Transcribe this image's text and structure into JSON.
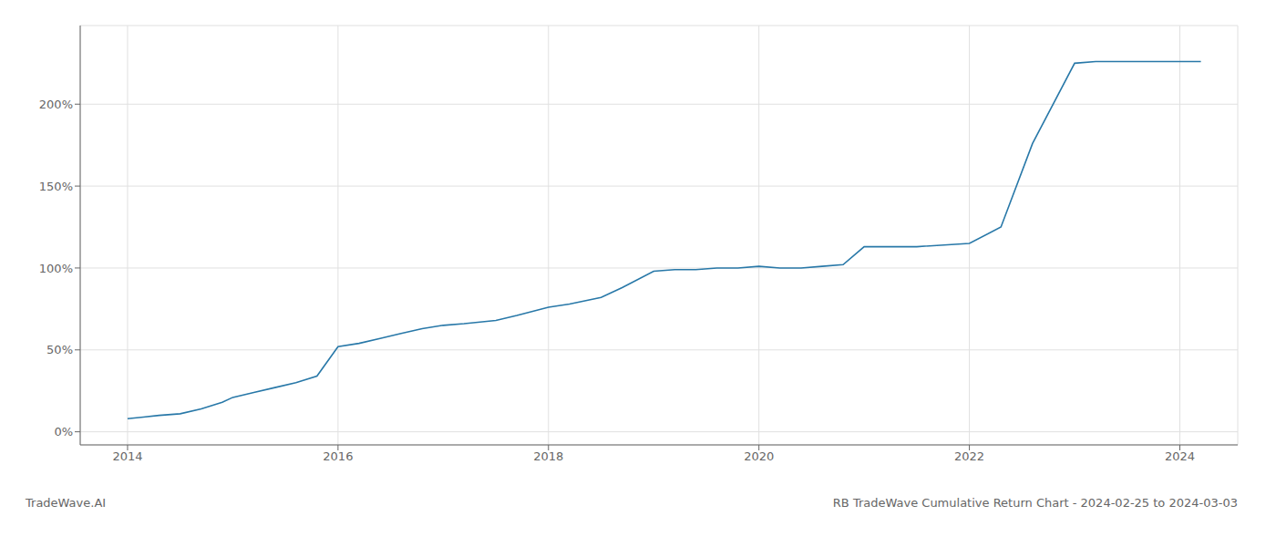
{
  "chart_data": {
    "type": "line",
    "title": "RB TradeWave Cumulative Return Chart - 2024-02-25 to 2024-03-03",
    "annotations": [
      "TradeWave.AI"
    ],
    "x": [
      2014.0,
      2014.15,
      2014.3,
      2014.5,
      2014.7,
      2014.9,
      2015.0,
      2015.2,
      2015.4,
      2015.6,
      2015.8,
      2016.0,
      2016.2,
      2016.4,
      2016.6,
      2016.8,
      2017.0,
      2017.2,
      2017.5,
      2017.7,
      2018.0,
      2018.2,
      2018.5,
      2018.7,
      2019.0,
      2019.2,
      2019.4,
      2019.6,
      2019.8,
      2020.0,
      2020.2,
      2020.4,
      2020.6,
      2020.8,
      2021.0,
      2021.2,
      2021.5,
      2022.0,
      2022.3,
      2022.6,
      2023.0,
      2023.2,
      2024.0,
      2024.2
    ],
    "values": [
      8,
      9,
      10,
      11,
      14,
      18,
      21,
      24,
      27,
      30,
      34,
      52,
      54,
      57,
      60,
      63,
      65,
      66,
      68,
      71,
      76,
      78,
      82,
      88,
      98,
      99,
      99,
      100,
      100,
      101,
      100,
      100,
      101,
      102,
      113,
      113,
      113,
      115,
      125,
      176,
      225,
      226,
      226,
      226
    ],
    "color": "#2878a8",
    "xlim": [
      2013.55,
      2024.55
    ],
    "ylim": [
      -8,
      248
    ],
    "xticks": [
      2014,
      2016,
      2018,
      2020,
      2022,
      2024
    ],
    "yticks": [
      {
        "value": 0,
        "label": "0%"
      },
      {
        "value": 50,
        "label": "50%"
      },
      {
        "value": 100,
        "label": "100%"
      },
      {
        "value": 150,
        "label": "150%"
      },
      {
        "value": 200,
        "label": "200%"
      }
    ],
    "grid": true
  }
}
